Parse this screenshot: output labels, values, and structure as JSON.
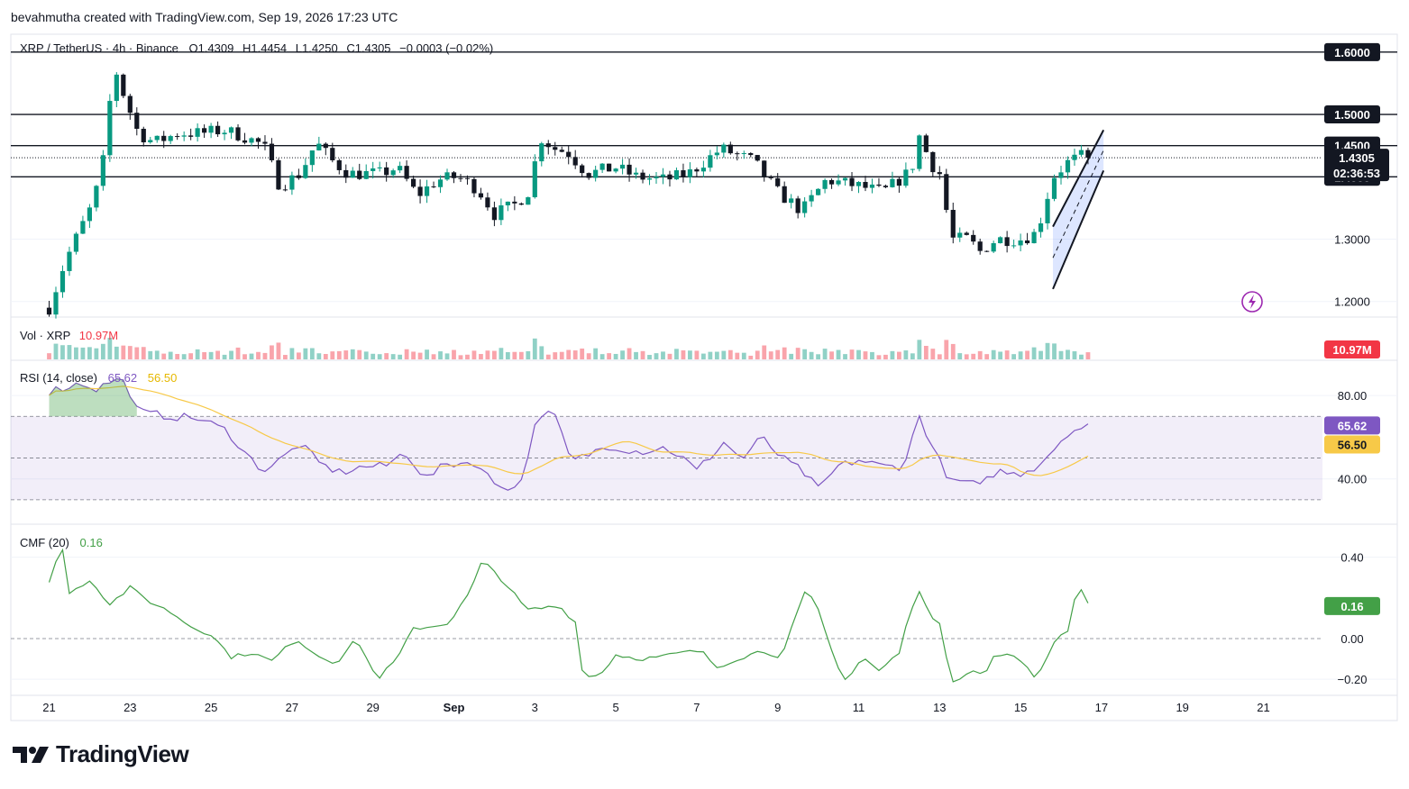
{
  "header": {
    "created_by": "bevahmutha created with TradingView.com, Sep 19, 2026 17:23 UTC"
  },
  "legend": {
    "symbol": "XRP / TetherUS · 4h · Binance",
    "open": "O1.4309",
    "high": "H1.4454",
    "low": "L1.4250",
    "close": "C1.4305",
    "change": "−0.0003 (−0.02%)"
  },
  "volume_legend": {
    "label": "Vol · XRP",
    "value": "10.97M"
  },
  "rsi_legend": {
    "label": "RSI (14, close)",
    "value": "65.62",
    "ma": "56.50"
  },
  "cmf_legend": {
    "label": "CMF (20)",
    "value": "0.16"
  },
  "price_badges": {
    "last": "1.4305",
    "countdown": "02:36:53",
    "volume": "10.97M",
    "rsi": "65.62",
    "rsi_ma": "56.50",
    "cmf": "0.16"
  },
  "branding": {
    "name": "TradingView"
  },
  "colors": {
    "up": "#089981",
    "down": "#f23645",
    "rsi": "#7e57c2",
    "rsi_ma": "#f7c948",
    "cmf": "#43a047",
    "channel": "#2962ff"
  },
  "chart_data": {
    "type": "candlestick",
    "symbol": "XRP / TetherUS",
    "timeframe": "4h",
    "price_axis": {
      "ticks": [
        "1.2000",
        "1.3000"
      ],
      "ylim": [
        1.175,
        1.62
      ]
    },
    "horizontal_levels": [
      "1.6000",
      "1.5000",
      "1.4500",
      "1.4000"
    ],
    "x_ticks": [
      "21",
      "23",
      "25",
      "27",
      "29",
      "Sep",
      "3",
      "5",
      "7",
      "9",
      "11",
      "13",
      "15",
      "17",
      "19",
      "21"
    ],
    "anchors": [
      {
        "d": 0,
        "p": 1.19
      },
      {
        "d": 0.4,
        "p": 1.265
      },
      {
        "d": 0.8,
        "p": 1.32
      },
      {
        "d": 1.1,
        "p": 1.36
      },
      {
        "d": 1.35,
        "p": 1.43
      },
      {
        "d": 1.6,
        "p": 1.58
      },
      {
        "d": 1.85,
        "p": 1.53
      },
      {
        "d": 2.2,
        "p": 1.47
      },
      {
        "d": 2.6,
        "p": 1.455
      },
      {
        "d": 3.2,
        "p": 1.47
      },
      {
        "d": 3.8,
        "p": 1.47
      },
      {
        "d": 4.3,
        "p": 1.475
      },
      {
        "d": 4.8,
        "p": 1.465
      },
      {
        "d": 5.3,
        "p": 1.45
      },
      {
        "d": 5.7,
        "p": 1.385
      },
      {
        "d": 6.2,
        "p": 1.405
      },
      {
        "d": 6.6,
        "p": 1.455
      },
      {
        "d": 7.0,
        "p": 1.425
      },
      {
        "d": 7.4,
        "p": 1.405
      },
      {
        "d": 8.2,
        "p": 1.405
      },
      {
        "d": 8.6,
        "p": 1.415
      },
      {
        "d": 9.1,
        "p": 1.37
      },
      {
        "d": 9.6,
        "p": 1.395
      },
      {
        "d": 10.1,
        "p": 1.4
      },
      {
        "d": 10.6,
        "p": 1.38
      },
      {
        "d": 11.0,
        "p": 1.34
      },
      {
        "d": 11.5,
        "p": 1.355
      },
      {
        "d": 11.9,
        "p": 1.38
      },
      {
        "d": 12.1,
        "p": 1.465
      },
      {
        "d": 12.5,
        "p": 1.445
      },
      {
        "d": 12.8,
        "p": 1.44
      },
      {
        "d": 13.3,
        "p": 1.405
      },
      {
        "d": 14.0,
        "p": 1.415
      },
      {
        "d": 14.5,
        "p": 1.4
      },
      {
        "d": 15.2,
        "p": 1.395
      },
      {
        "d": 15.8,
        "p": 1.405
      },
      {
        "d": 16.6,
        "p": 1.445
      },
      {
        "d": 17.4,
        "p": 1.425
      },
      {
        "d": 18.0,
        "p": 1.375
      },
      {
        "d": 18.6,
        "p": 1.345
      },
      {
        "d": 19.2,
        "p": 1.395
      },
      {
        "d": 20.0,
        "p": 1.385
      },
      {
        "d": 20.6,
        "p": 1.375
      },
      {
        "d": 21.3,
        "p": 1.41
      },
      {
        "d": 21.5,
        "p": 1.465
      },
      {
        "d": 21.8,
        "p": 1.42
      },
      {
        "d": 22.0,
        "p": 1.405
      },
      {
        "d": 22.3,
        "p": 1.3
      },
      {
        "d": 22.7,
        "p": 1.3
      },
      {
        "d": 23.0,
        "p": 1.28
      },
      {
        "d": 23.4,
        "p": 1.3
      },
      {
        "d": 24.0,
        "p": 1.3
      },
      {
        "d": 24.4,
        "p": 1.31
      },
      {
        "d": 24.8,
        "p": 1.4
      },
      {
        "d": 25.2,
        "p": 1.425
      },
      {
        "d": 25.6,
        "p": 1.435
      },
      {
        "d": 25.75,
        "p": 1.4305
      }
    ],
    "channel": {
      "upper": [
        [
          24.8,
          1.32
        ],
        [
          26.05,
          1.475
        ]
      ],
      "lower": [
        [
          24.8,
          1.22
        ],
        [
          26.05,
          1.41
        ]
      ]
    },
    "volume": {
      "last": 10.97,
      "unit": "M"
    },
    "rsi": {
      "period": 14,
      "last": 65.62,
      "ma_last": 56.5,
      "ticks": [
        "80.00",
        "40.00"
      ],
      "band": [
        30,
        70
      ],
      "middle": 50,
      "anchors": [
        {
          "d": 0,
          "v": 82
        },
        {
          "d": 0.8,
          "v": 86
        },
        {
          "d": 1.2,
          "v": 83
        },
        {
          "d": 1.6,
          "v": 88
        },
        {
          "d": 1.9,
          "v": 86
        },
        {
          "d": 2.2,
          "v": 72
        },
        {
          "d": 3.0,
          "v": 70
        },
        {
          "d": 3.7,
          "v": 69
        },
        {
          "d": 4.4,
          "v": 63
        },
        {
          "d": 4.9,
          "v": 51
        },
        {
          "d": 5.3,
          "v": 44
        },
        {
          "d": 5.7,
          "v": 49
        },
        {
          "d": 6.2,
          "v": 57
        },
        {
          "d": 6.7,
          "v": 47
        },
        {
          "d": 7.2,
          "v": 43
        },
        {
          "d": 7.8,
          "v": 46
        },
        {
          "d": 8.3,
          "v": 46
        },
        {
          "d": 8.8,
          "v": 53
        },
        {
          "d": 9.3,
          "v": 40
        },
        {
          "d": 9.8,
          "v": 47
        },
        {
          "d": 10.5,
          "v": 48
        },
        {
          "d": 11.0,
          "v": 38
        },
        {
          "d": 11.6,
          "v": 35
        },
        {
          "d": 12.1,
          "v": 72
        },
        {
          "d": 12.5,
          "v": 70
        },
        {
          "d": 12.9,
          "v": 48
        },
        {
          "d": 13.8,
          "v": 56
        },
        {
          "d": 14.6,
          "v": 53
        },
        {
          "d": 15.2,
          "v": 55
        },
        {
          "d": 15.6,
          "v": 51
        },
        {
          "d": 16.0,
          "v": 44
        },
        {
          "d": 16.3,
          "v": 50
        },
        {
          "d": 16.7,
          "v": 58
        },
        {
          "d": 17.1,
          "v": 49
        },
        {
          "d": 17.6,
          "v": 60
        },
        {
          "d": 18.1,
          "v": 50
        },
        {
          "d": 18.6,
          "v": 44
        },
        {
          "d": 19.0,
          "v": 35
        },
        {
          "d": 19.5,
          "v": 46
        },
        {
          "d": 20.0,
          "v": 49
        },
        {
          "d": 20.6,
          "v": 46
        },
        {
          "d": 21.1,
          "v": 46
        },
        {
          "d": 21.5,
          "v": 70
        },
        {
          "d": 21.9,
          "v": 52
        },
        {
          "d": 22.3,
          "v": 38
        },
        {
          "d": 22.7,
          "v": 39
        },
        {
          "d": 23.0,
          "v": 36
        },
        {
          "d": 23.4,
          "v": 44
        },
        {
          "d": 23.9,
          "v": 42
        },
        {
          "d": 24.4,
          "v": 46
        },
        {
          "d": 24.8,
          "v": 54
        },
        {
          "d": 25.2,
          "v": 63
        },
        {
          "d": 25.75,
          "v": 65.6
        }
      ]
    },
    "cmf": {
      "period": 20,
      "last": 0.16,
      "ticks": [
        "0.40",
        "0.00",
        "−0.20"
      ],
      "ylim": [
        -0.27,
        0.5
      ],
      "anchors": [
        {
          "d": 0,
          "v": 0.27
        },
        {
          "d": 0.3,
          "v": 0.48
        },
        {
          "d": 0.5,
          "v": 0.22
        },
        {
          "d": 1.0,
          "v": 0.29
        },
        {
          "d": 1.5,
          "v": 0.17
        },
        {
          "d": 2.0,
          "v": 0.25
        },
        {
          "d": 2.5,
          "v": 0.18
        },
        {
          "d": 3.0,
          "v": 0.13
        },
        {
          "d": 3.5,
          "v": 0.06
        },
        {
          "d": 4.0,
          "v": 0.02
        },
        {
          "d": 4.5,
          "v": -0.09
        },
        {
          "d": 5.0,
          "v": -0.07
        },
        {
          "d": 5.5,
          "v": -0.11
        },
        {
          "d": 6.1,
          "v": 0.0
        },
        {
          "d": 6.6,
          "v": -0.08
        },
        {
          "d": 7.1,
          "v": -0.12
        },
        {
          "d": 7.6,
          "v": 0.0
        },
        {
          "d": 8.1,
          "v": -0.2
        },
        {
          "d": 8.6,
          "v": -0.1
        },
        {
          "d": 9.0,
          "v": 0.05
        },
        {
          "d": 9.5,
          "v": 0.06
        },
        {
          "d": 9.9,
          "v": 0.08
        },
        {
          "d": 10.4,
          "v": 0.23
        },
        {
          "d": 10.7,
          "v": 0.38
        },
        {
          "d": 11.0,
          "v": 0.33
        },
        {
          "d": 11.4,
          "v": 0.24
        },
        {
          "d": 11.8,
          "v": 0.14
        },
        {
          "d": 12.6,
          "v": 0.16
        },
        {
          "d": 13.0,
          "v": 0.08
        },
        {
          "d": 13.2,
          "v": -0.19
        },
        {
          "d": 13.6,
          "v": -0.18
        },
        {
          "d": 14.0,
          "v": -0.08
        },
        {
          "d": 14.6,
          "v": -0.1
        },
        {
          "d": 15.1,
          "v": -0.09
        },
        {
          "d": 15.6,
          "v": -0.07
        },
        {
          "d": 16.1,
          "v": -0.06
        },
        {
          "d": 16.5,
          "v": -0.14
        },
        {
          "d": 17.0,
          "v": -0.1
        },
        {
          "d": 17.6,
          "v": -0.06
        },
        {
          "d": 18.1,
          "v": -0.09
        },
        {
          "d": 18.4,
          "v": 0.08
        },
        {
          "d": 18.7,
          "v": 0.24
        },
        {
          "d": 19.0,
          "v": 0.14
        },
        {
          "d": 19.4,
          "v": -0.1
        },
        {
          "d": 19.7,
          "v": -0.21
        },
        {
          "d": 20.1,
          "v": -0.09
        },
        {
          "d": 20.5,
          "v": -0.16
        },
        {
          "d": 21.0,
          "v": -0.07
        },
        {
          "d": 21.3,
          "v": 0.15
        },
        {
          "d": 21.5,
          "v": 0.24
        },
        {
          "d": 21.8,
          "v": 0.09
        },
        {
          "d": 22.0,
          "v": 0.08
        },
        {
          "d": 22.3,
          "v": -0.21
        },
        {
          "d": 22.8,
          "v": -0.16
        },
        {
          "d": 23.1,
          "v": -0.18
        },
        {
          "d": 23.4,
          "v": -0.07
        },
        {
          "d": 23.8,
          "v": -0.09
        },
        {
          "d": 24.1,
          "v": -0.12
        },
        {
          "d": 24.4,
          "v": -0.2
        },
        {
          "d": 24.8,
          "v": -0.02
        },
        {
          "d": 25.2,
          "v": 0.05
        },
        {
          "d": 25.4,
          "v": 0.26
        },
        {
          "d": 25.75,
          "v": 0.16
        }
      ]
    }
  }
}
